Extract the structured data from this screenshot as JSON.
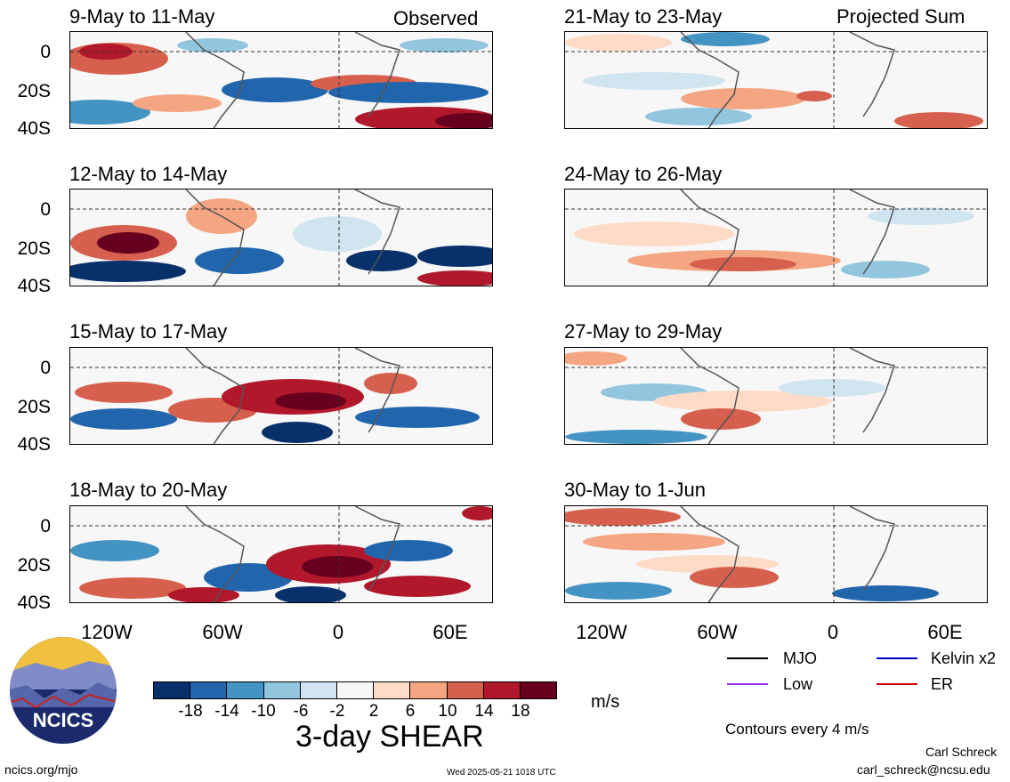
{
  "panels": {
    "left": [
      {
        "title": "9-May to 11-May",
        "corner": "Observed"
      },
      {
        "title": "12-May to 14-May",
        "corner": ""
      },
      {
        "title": "15-May to 17-May",
        "corner": ""
      },
      {
        "title": "18-May to 20-May",
        "corner": ""
      }
    ],
    "right": [
      {
        "title": "21-May to 23-May",
        "corner": "Projected Sum"
      },
      {
        "title": "24-May to 26-May",
        "corner": ""
      },
      {
        "title": "27-May to 29-May",
        "corner": ""
      },
      {
        "title": "30-May to 1-Jun",
        "corner": ""
      }
    ]
  },
  "axes": {
    "lat_labels": [
      "0",
      "20S",
      "40S"
    ],
    "lon_labels": [
      "120W",
      "60W",
      "0",
      "60E"
    ]
  },
  "colorbar": {
    "ticks": [
      "-18",
      "-14",
      "-10",
      "-6",
      "-2",
      "2",
      "6",
      "10",
      "14",
      "18"
    ],
    "units": "m/s",
    "title": "3-day SHEAR",
    "colors": [
      "#08306b",
      "#2166ac",
      "#4393c3",
      "#92c5de",
      "#d1e5f0",
      "#f7f7f7",
      "#fddbc7",
      "#f4a582",
      "#d6604d",
      "#b2182b",
      "#67001f"
    ]
  },
  "legend": {
    "mjo": "MJO",
    "kelvin": "Kelvin x2",
    "low": "Low",
    "er": "ER",
    "mjo_color": "#000000",
    "kelvin_color": "#0000cc",
    "low_color": "#9b30ff",
    "er_color": "#cc0000",
    "contours": "Contours every 4 m/s"
  },
  "footer": {
    "logo_text": "NCICS",
    "site": "ncics.org/mjo",
    "timestamp": "Wed 2025-05-21 1018 UTC",
    "author": "Carl Schreck",
    "email": "carl_schreck@ncsu.edu"
  }
}
